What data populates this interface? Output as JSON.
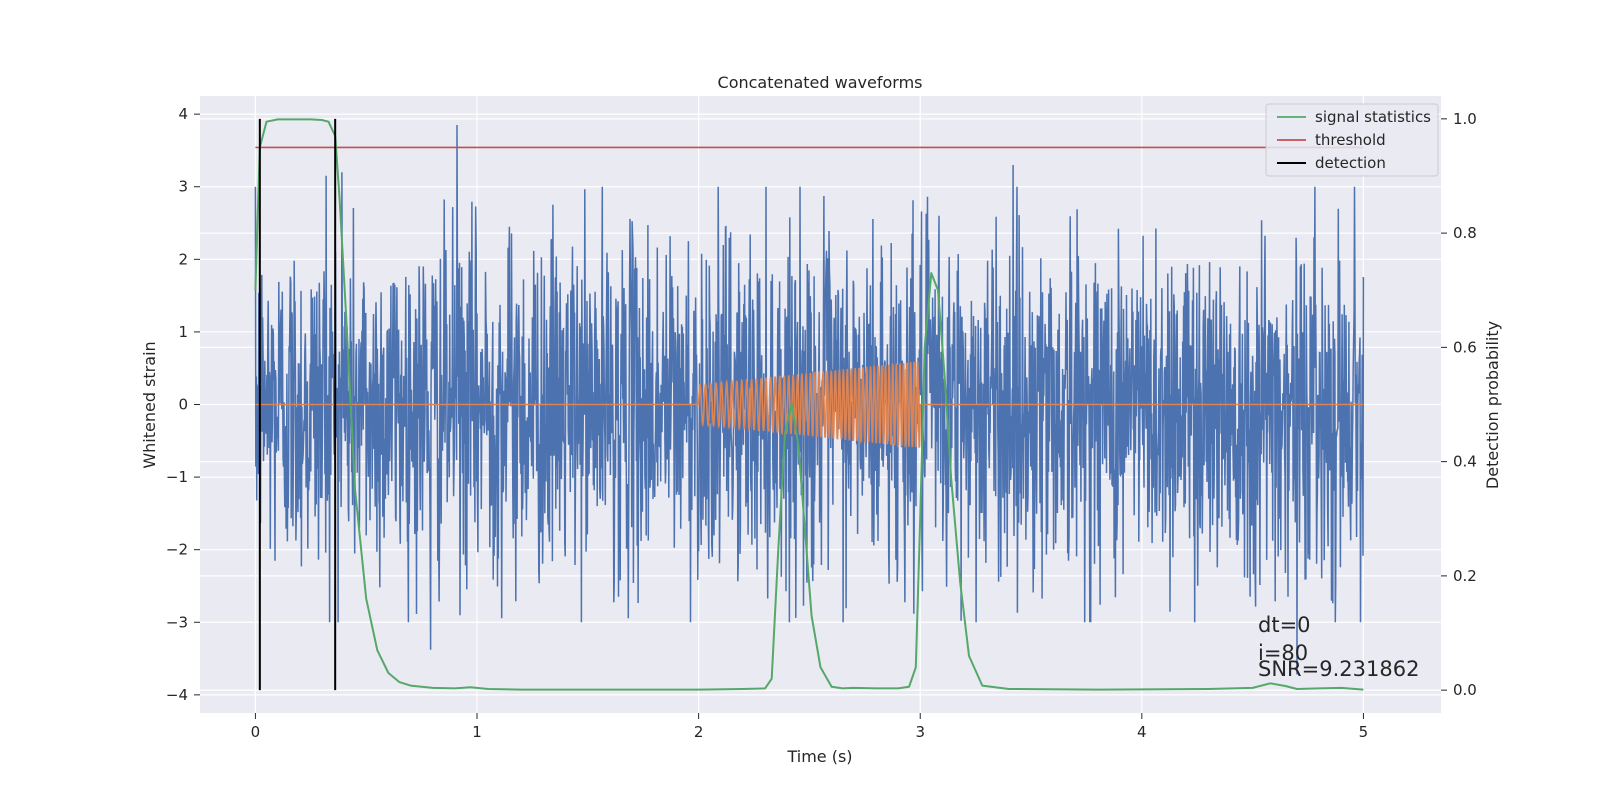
{
  "chart_data": {
    "type": "line",
    "title": "Concatenated waveforms",
    "xlabel": "Time (s)",
    "ylabel": "Whitened strain",
    "y2label": "Detection probability",
    "xlim": [
      -0.25,
      5.35
    ],
    "ylim": [
      -4.25,
      4.25
    ],
    "y2lim": [
      -0.04,
      1.04
    ],
    "xticks": [
      0,
      1,
      2,
      3,
      4,
      5
    ],
    "yticks": [
      -4,
      -3,
      -2,
      -1,
      0,
      1,
      2,
      3,
      4
    ],
    "y2ticks": [
      0.0,
      0.2,
      0.4,
      0.6,
      0.8,
      1.0
    ],
    "y2ticklabels": [
      "0.0",
      "0.2",
      "0.4",
      "0.6",
      "0.8",
      "1.0"
    ],
    "grid": true,
    "legend_position": "top-right",
    "colors": {
      "noise": "#4c72b0",
      "injection": "#dd8452",
      "signal_statistics": "#55a868",
      "threshold": "#c44e52",
      "detection": "#000000",
      "background": "#eaeaf2"
    },
    "noise_series": {
      "x_range": [
        0,
        5
      ],
      "typical_amplitude": 1.3,
      "peaks": [
        [
          0.91,
          3.85
        ],
        [
          3.42,
          3.3
        ],
        [
          0.79,
          -3.38
        ],
        [
          4.7,
          -3.72
        ],
        [
          0.32,
          3.15
        ],
        [
          0.39,
          3.2
        ]
      ]
    },
    "injection_series": {
      "x_range": [
        2.0,
        3.0
      ],
      "amplitude_start": 0.27,
      "amplitude_end": 0.6,
      "baseline": 0
    },
    "signal_statistics": {
      "x": [
        0.0,
        0.02,
        0.05,
        0.1,
        0.15,
        0.2,
        0.25,
        0.3,
        0.33,
        0.36,
        0.38,
        0.41,
        0.45,
        0.5,
        0.55,
        0.6,
        0.65,
        0.7,
        0.8,
        0.9,
        0.97,
        1.05,
        1.2,
        1.5,
        2.0,
        2.2,
        2.3,
        2.33,
        2.36,
        2.39,
        2.42,
        2.45,
        2.48,
        2.51,
        2.55,
        2.6,
        2.65,
        2.7,
        2.8,
        2.9,
        2.95,
        2.98,
        3.0,
        3.02,
        3.05,
        3.08,
        3.11,
        3.14,
        3.18,
        3.22,
        3.28,
        3.4,
        3.8,
        4.3,
        4.5,
        4.58,
        4.65,
        4.7,
        4.8,
        4.9,
        5.0
      ],
      "values": [
        0.7,
        0.95,
        0.995,
        0.999,
        0.999,
        0.999,
        0.999,
        0.998,
        0.995,
        0.97,
        0.86,
        0.65,
        0.35,
        0.16,
        0.07,
        0.03,
        0.014,
        0.008,
        0.004,
        0.003,
        0.005,
        0.002,
        0.001,
        0.001,
        0.001,
        0.002,
        0.003,
        0.02,
        0.25,
        0.45,
        0.5,
        0.43,
        0.28,
        0.13,
        0.04,
        0.006,
        0.003,
        0.004,
        0.003,
        0.003,
        0.006,
        0.04,
        0.3,
        0.6,
        0.73,
        0.7,
        0.55,
        0.37,
        0.19,
        0.06,
        0.008,
        0.002,
        0.001,
        0.002,
        0.004,
        0.012,
        0.007,
        0.002,
        0.003,
        0.004,
        0.001
      ]
    },
    "threshold": {
      "value": 0.95,
      "x_range": [
        0,
        5
      ]
    },
    "detections": [
      {
        "x": 0.02,
        "y2_range": [
          0.0,
          1.0
        ]
      },
      {
        "x": 0.36,
        "y2_range": [
          0.0,
          1.0
        ]
      }
    ],
    "legend": [
      "signal statistics",
      "threshold",
      "detection"
    ],
    "annotations": [
      "dt=0",
      "i=80",
      "SNR=9.231862"
    ]
  }
}
